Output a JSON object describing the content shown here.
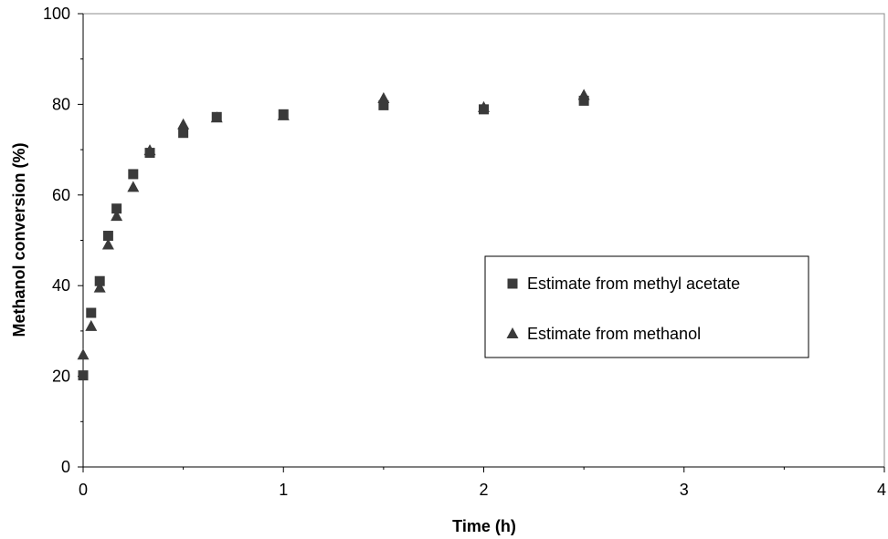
{
  "chart_data": {
    "type": "scatter",
    "xlabel": "Time (h)",
    "ylabel": "Methanol conversion (%)",
    "xlim": [
      0,
      4
    ],
    "ylim": [
      0,
      100
    ],
    "xticks": [
      "0",
      "1",
      "2",
      "3",
      "4"
    ],
    "yticks": [
      "0",
      "20",
      "40",
      "60",
      "80",
      "100"
    ],
    "grid": false,
    "legend_position": "right",
    "series": [
      {
        "name": "Estimate from methyl acetate",
        "marker": "square",
        "color": "#3a3a3a",
        "points": [
          [
            0.0,
            20.2
          ],
          [
            0.04,
            34.0
          ],
          [
            0.083,
            41.0
          ],
          [
            0.125,
            51.0
          ],
          [
            0.167,
            57.0
          ],
          [
            0.25,
            64.6
          ],
          [
            0.333,
            69.3
          ],
          [
            0.5,
            73.7
          ],
          [
            0.667,
            77.2
          ],
          [
            1.0,
            77.8
          ],
          [
            1.5,
            79.8
          ],
          [
            2.0,
            78.9
          ],
          [
            2.5,
            80.8
          ]
        ]
      },
      {
        "name": "Estimate from methanol",
        "marker": "triangle",
        "color": "#3a3a3a",
        "points": [
          [
            0.0,
            24.7
          ],
          [
            0.04,
            31.0
          ],
          [
            0.083,
            39.5
          ],
          [
            0.125,
            49.0
          ],
          [
            0.167,
            55.3
          ],
          [
            0.25,
            61.7
          ],
          [
            0.333,
            69.8
          ],
          [
            0.5,
            75.5
          ],
          [
            0.667,
            77.0
          ],
          [
            1.0,
            77.5
          ],
          [
            1.5,
            81.3
          ],
          [
            2.0,
            79.3
          ],
          [
            2.5,
            82.0
          ]
        ]
      }
    ]
  }
}
